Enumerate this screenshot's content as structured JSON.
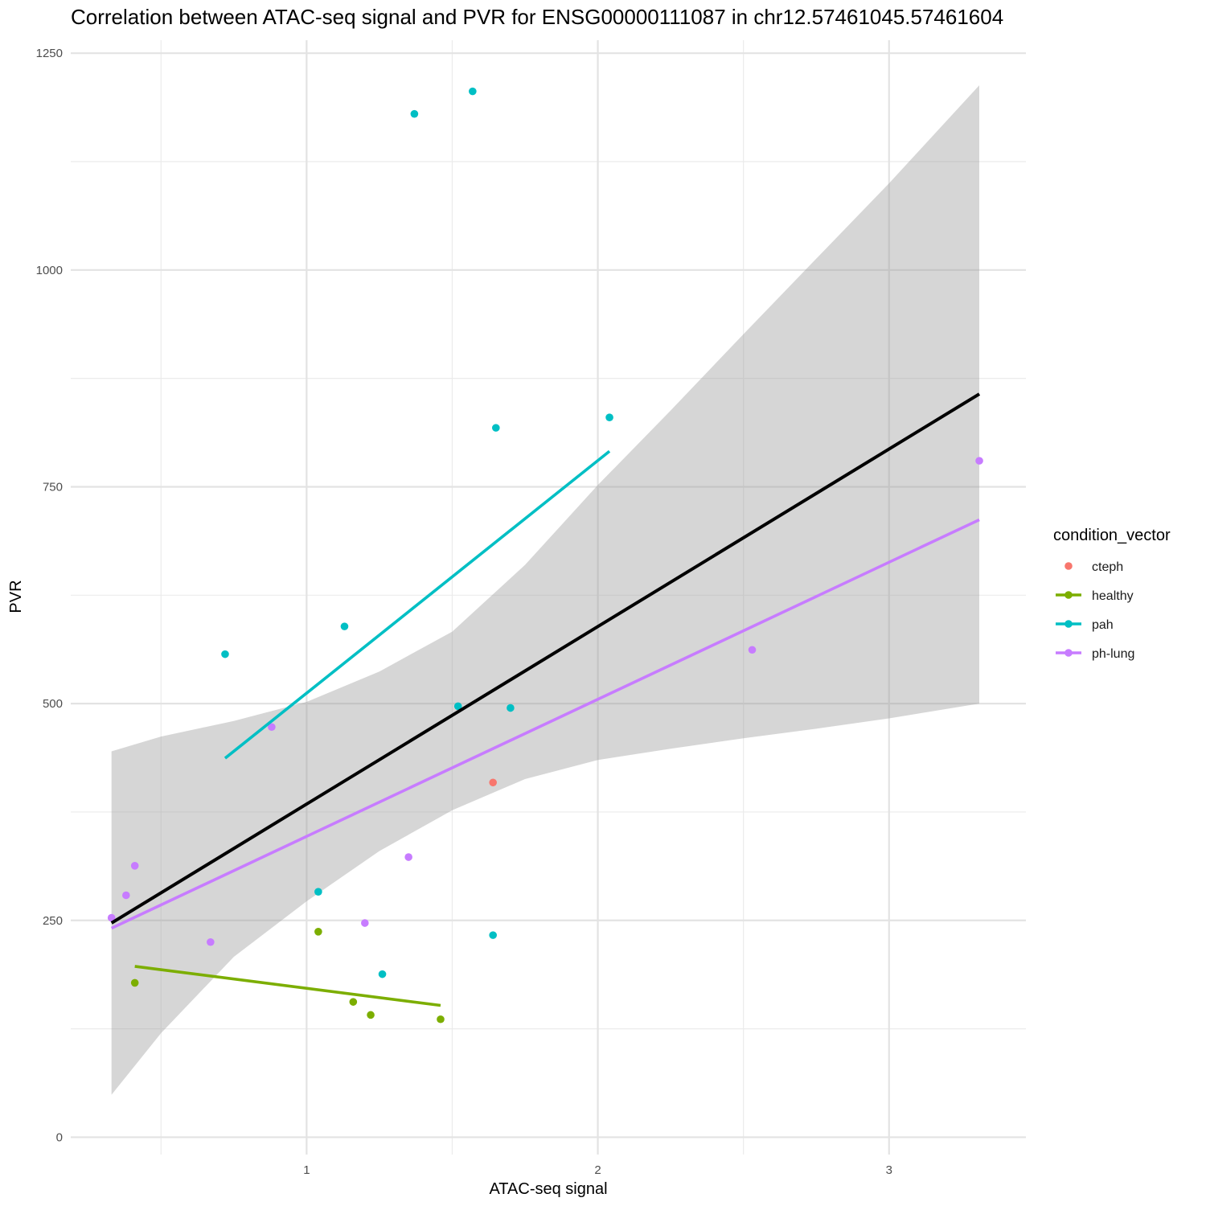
{
  "chart_data": {
    "type": "scatter",
    "title": "Correlation between ATAC-seq signal and PVR for ENSG00000111087 in chr12.57461045.57461604",
    "xlabel": "ATAC-seq signal",
    "ylabel": "PVR",
    "xlim": [
      0.19,
      3.47
    ],
    "ylim": [
      -20,
      1265
    ],
    "x_ticks": [
      1,
      2,
      3
    ],
    "x_tick_labels": [
      "1",
      "2",
      "3"
    ],
    "x_minor_ticks": [
      0.5,
      1.5,
      2.5
    ],
    "y_ticks": [
      0,
      250,
      500,
      750,
      1000,
      1250
    ],
    "y_tick_labels": [
      "0",
      "250",
      "500",
      "750",
      "1000",
      "1250"
    ],
    "y_minor_ticks": [
      125,
      375,
      625,
      875,
      1125
    ],
    "grid": true,
    "legend": {
      "title": "condition_vector",
      "position": "right",
      "entries": [
        {
          "label": "cteph",
          "color": "#F8766D",
          "has_line": false
        },
        {
          "label": "healthy",
          "color": "#7CAE00",
          "has_line": true
        },
        {
          "label": "pah",
          "color": "#00BFC4",
          "has_line": true
        },
        {
          "label": "ph-lung",
          "color": "#C77CFF",
          "has_line": true
        }
      ]
    },
    "series": [
      {
        "name": "cteph",
        "color": "#F8766D",
        "points": [
          [
            1.64,
            409
          ]
        ]
      },
      {
        "name": "healthy",
        "color": "#7CAE00",
        "points": [
          [
            0.41,
            178
          ],
          [
            1.04,
            237
          ],
          [
            1.16,
            156
          ],
          [
            1.22,
            141
          ],
          [
            1.46,
            136
          ]
        ]
      },
      {
        "name": "pah",
        "color": "#00BFC4",
        "points": [
          [
            0.72,
            557
          ],
          [
            1.04,
            283
          ],
          [
            1.13,
            589
          ],
          [
            1.26,
            188
          ],
          [
            1.37,
            1180
          ],
          [
            1.52,
            497
          ],
          [
            1.57,
            1206
          ],
          [
            1.64,
            233
          ],
          [
            1.65,
            818
          ],
          [
            1.7,
            495
          ],
          [
            2.04,
            830
          ]
        ]
      },
      {
        "name": "ph-lung",
        "color": "#C77CFF",
        "points": [
          [
            0.33,
            253
          ],
          [
            0.38,
            279
          ],
          [
            0.41,
            313
          ],
          [
            0.67,
            225
          ],
          [
            0.88,
            473
          ],
          [
            1.2,
            247
          ],
          [
            1.35,
            323
          ],
          [
            2.53,
            562
          ],
          [
            3.31,
            780
          ]
        ]
      }
    ],
    "fit_lines": [
      {
        "name": "healthy",
        "color": "#7CAE00",
        "x": [
          0.41,
          1.46
        ],
        "y": [
          197,
          152
        ]
      },
      {
        "name": "pah",
        "color": "#00BFC4",
        "x": [
          0.72,
          2.04
        ],
        "y": [
          437,
          791
        ]
      },
      {
        "name": "ph-lung",
        "color": "#C77CFF",
        "x": [
          0.33,
          3.31
        ],
        "y": [
          241,
          712
        ]
      },
      {
        "name": "overall",
        "color": "#000000",
        "x": [
          0.33,
          3.31
        ],
        "y": [
          247,
          857
        ]
      }
    ],
    "confidence_band": {
      "color": "#999999",
      "x": [
        0.33,
        0.5,
        0.75,
        1.0,
        1.25,
        1.5,
        1.75,
        2.0,
        2.25,
        2.5,
        2.75,
        3.0,
        3.31
      ],
      "upper": [
        445,
        462,
        480,
        502,
        537,
        583,
        660,
        752,
        838,
        926,
        1013,
        1100,
        1213
      ],
      "lower": [
        49,
        120,
        208,
        272,
        330,
        377,
        413,
        435,
        448,
        460,
        471,
        483,
        500
      ]
    }
  }
}
